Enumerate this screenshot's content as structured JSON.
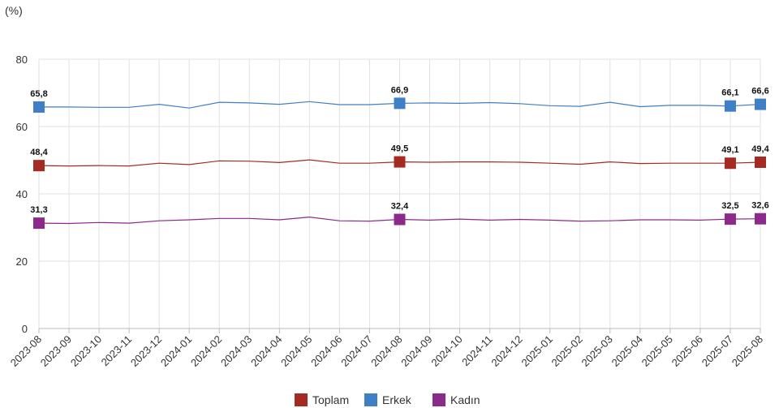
{
  "chart_data": {
    "type": "line",
    "unit_label": "(%)",
    "title": "",
    "xlabel": "",
    "ylabel": "",
    "ylim": [
      0,
      80
    ],
    "yticks": [
      0,
      20,
      40,
      60,
      80
    ],
    "grid": true,
    "legend_position": "bottom-center",
    "categories": [
      "2023-08",
      "2023-09",
      "2023-10",
      "2023-11",
      "2023-12",
      "2024-01",
      "2024-02",
      "2024-03",
      "2024-04",
      "2024-05",
      "2024-06",
      "2024-07",
      "2024-08",
      "2024-09",
      "2024-10",
      "2024-11",
      "2024-12",
      "2025-01",
      "2025-02",
      "2025-03",
      "2025-04",
      "2025-05",
      "2025-06",
      "2025-07",
      "2025-08"
    ],
    "series": [
      {
        "name": "Toplam",
        "color": "#a52a22",
        "values": [
          48.4,
          48.3,
          48.4,
          48.3,
          49.1,
          48.7,
          49.8,
          49.7,
          49.3,
          50.1,
          49.1,
          49.1,
          49.5,
          49.4,
          49.5,
          49.5,
          49.4,
          49.1,
          48.8,
          49.5,
          49.0,
          49.1,
          49.1,
          49.1,
          49.4
        ],
        "labels": [
          {
            "index": 0,
            "text": "48,4"
          },
          {
            "index": 12,
            "text": "49,5"
          },
          {
            "index": 23,
            "text": "49,1"
          },
          {
            "index": 24,
            "text": "49,4"
          }
        ]
      },
      {
        "name": "Erkek",
        "color": "#3f7fc6",
        "values": [
          65.8,
          65.8,
          65.7,
          65.7,
          66.6,
          65.5,
          67.2,
          67.0,
          66.6,
          67.4,
          66.5,
          66.5,
          66.9,
          67.0,
          66.9,
          67.1,
          66.8,
          66.2,
          66.0,
          67.2,
          65.9,
          66.3,
          66.3,
          66.1,
          66.6
        ],
        "labels": [
          {
            "index": 0,
            "text": "65,8"
          },
          {
            "index": 12,
            "text": "66,9"
          },
          {
            "index": 23,
            "text": "66,1"
          },
          {
            "index": 24,
            "text": "66,6"
          }
        ]
      },
      {
        "name": "Kadın",
        "color": "#8b2a8b",
        "values": [
          31.3,
          31.2,
          31.5,
          31.3,
          32.0,
          32.3,
          32.7,
          32.7,
          32.3,
          33.1,
          32.0,
          31.9,
          32.4,
          32.2,
          32.5,
          32.2,
          32.4,
          32.2,
          31.9,
          32.0,
          32.3,
          32.3,
          32.2,
          32.5,
          32.6
        ],
        "labels": [
          {
            "index": 0,
            "text": "31,3"
          },
          {
            "index": 12,
            "text": "32,4"
          },
          {
            "index": 23,
            "text": "32,5"
          },
          {
            "index": 24,
            "text": "32,6"
          }
        ]
      }
    ],
    "legend_order": [
      "Toplam",
      "Erkek",
      "Kadın"
    ]
  }
}
